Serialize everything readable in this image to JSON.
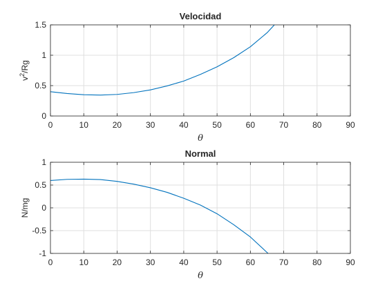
{
  "chart_data": [
    {
      "type": "line",
      "title": "Velocidad",
      "xlabel": "θ",
      "ylabel": "v",
      "ylabel_sup": "2",
      "ylabel_rest": "/Rg",
      "xlim": [
        0,
        90
      ],
      "ylim": [
        0,
        1.5
      ],
      "xticks": [
        0,
        10,
        20,
        30,
        40,
        50,
        60,
        70,
        80,
        90
      ],
      "yticks": [
        0,
        0.5,
        1,
        1.5
      ],
      "xtick_labels": [
        "0",
        "10",
        "20",
        "30",
        "40",
        "50",
        "60",
        "70",
        "80",
        "90"
      ],
      "ytick_labels": [
        "0",
        "0.5",
        "1",
        "1.5"
      ],
      "grid": true,
      "series": [
        {
          "color": "#0072bd",
          "x": [
            0,
            5,
            10,
            15,
            20,
            25,
            30,
            35,
            40,
            45,
            50,
            55,
            60,
            65,
            67.2
          ],
          "y": [
            0.4,
            0.37,
            0.35,
            0.345,
            0.355,
            0.385,
            0.43,
            0.495,
            0.575,
            0.685,
            0.81,
            0.96,
            1.14,
            1.37,
            1.5
          ]
        }
      ]
    },
    {
      "type": "line",
      "title": "Normal",
      "xlabel": "θ",
      "ylabel": "N/mg",
      "xlim": [
        0,
        90
      ],
      "ylim": [
        -1,
        1
      ],
      "xticks": [
        0,
        10,
        20,
        30,
        40,
        50,
        60,
        70,
        80,
        90
      ],
      "yticks": [
        -1,
        -0.5,
        0,
        0.5,
        1
      ],
      "xtick_labels": [
        "0",
        "10",
        "20",
        "30",
        "40",
        "50",
        "60",
        "70",
        "80",
        "90"
      ],
      "ytick_labels": [
        "-1",
        "-0.5",
        "0",
        "0.5",
        "1"
      ],
      "grid": true,
      "series": [
        {
          "color": "#0072bd",
          "x": [
            0,
            5,
            10,
            15,
            20,
            25,
            30,
            35,
            40,
            45,
            50,
            55,
            60,
            65.3
          ],
          "y": [
            0.6,
            0.625,
            0.63,
            0.62,
            0.58,
            0.52,
            0.44,
            0.34,
            0.21,
            0.06,
            -0.13,
            -0.37,
            -0.64,
            -1.0
          ]
        }
      ]
    }
  ]
}
